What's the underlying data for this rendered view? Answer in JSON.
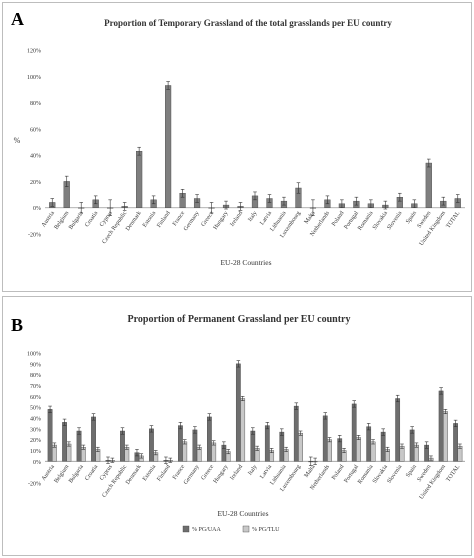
{
  "chart_data": [
    {
      "type": "bar",
      "panel_label": "A",
      "title": "Proportion of Temporary Grassland of the total grasslands per EU country",
      "xlabel": "EU-28 Countries",
      "ylabel": "%",
      "ylim": [
        -20,
        120
      ],
      "yticks": [
        "-20%",
        "0%",
        "20%",
        "40%",
        "60%",
        "80%",
        "100%",
        "120%"
      ],
      "grid": false,
      "categories": [
        "Austria",
        "Belgium",
        "Bulgaria",
        "Croatia",
        "Cyprus",
        "Czech Republic",
        "Denmark",
        "Estonia",
        "Finland",
        "France",
        "Germany",
        "Greece",
        "Hungary",
        "Ireland",
        "Italy",
        "Latvia",
        "Lithuania",
        "Luxembourg",
        "Malta",
        "Netherlands",
        "Poland",
        "Portugal",
        "Romania",
        "Slovakia",
        "Slovenia",
        "Spain",
        "Sweden",
        "United Kingdom",
        "TOTAL"
      ],
      "series": [
        {
          "values": [
            4,
            20,
            0,
            6,
            0,
            1,
            43,
            6,
            93,
            11,
            7,
            0,
            2,
            1,
            9,
            7,
            5,
            15,
            0,
            6,
            3,
            5,
            3,
            2,
            8,
            3,
            34,
            5,
            7
          ],
          "errors": [
            3,
            4,
            4,
            3,
            6,
            3,
            3,
            3,
            3,
            3,
            3,
            4,
            3,
            3,
            3,
            3,
            3,
            4,
            6,
            3,
            3,
            3,
            3,
            3,
            3,
            3,
            3,
            3,
            3
          ],
          "color": "#7f7f7f"
        }
      ]
    },
    {
      "type": "bar",
      "panel_label": "B",
      "title": "Proportion of Permanent Grassland per EU country",
      "xlabel": "EU-28 Countries",
      "ylabel": "",
      "ylim": [
        -20,
        100
      ],
      "yticks": [
        "-20%",
        "0%",
        "10%",
        "20%",
        "30%",
        "40%",
        "50%",
        "60%",
        "70%",
        "80%",
        "90%",
        "100%"
      ],
      "grid": false,
      "legend_position": "bottom",
      "categories": [
        "Austria",
        "Belgium",
        "Bulgaria",
        "Croatia",
        "Cyprus",
        "Czech Republic",
        "Denmark",
        "Estonia",
        "Finland",
        "France",
        "Germany",
        "Greece",
        "Hungary",
        "Ireland",
        "Italy",
        "Latvia",
        "Lithuania",
        "Luxembourg",
        "Malta",
        "Netherlands",
        "Poland",
        "Portugal",
        "Romania",
        "Slovakia",
        "Slovenia",
        "Spain",
        "Sweden",
        "United Kingdom",
        "TOTAL"
      ],
      "series": [
        {
          "name": "% PG/UAA",
          "values": [
            48,
            36,
            28,
            41,
            1,
            28,
            8,
            30,
            1,
            33,
            29,
            41,
            15,
            90,
            28,
            33,
            27,
            51,
            0,
            42,
            21,
            53,
            32,
            27,
            58,
            29,
            15,
            65,
            35
          ],
          "errors": [
            3,
            3,
            3,
            3,
            3,
            3,
            3,
            3,
            3,
            3,
            3,
            3,
            3,
            3,
            3,
            3,
            3,
            3,
            4,
            3,
            3,
            3,
            3,
            3,
            3,
            3,
            3,
            3,
            3
          ],
          "color": "#6e6e6e"
        },
        {
          "name": "% PG/TLU",
          "values": [
            15,
            16,
            13,
            11,
            1,
            13,
            5,
            8,
            1,
            18,
            13,
            17,
            9,
            58,
            12,
            10,
            11,
            26,
            0,
            20,
            10,
            22,
            18,
            11,
            14,
            15,
            3,
            46,
            14
          ],
          "errors": [
            2,
            2,
            2,
            2,
            2,
            2,
            2,
            2,
            2,
            2,
            2,
            2,
            2,
            2,
            2,
            2,
            2,
            2,
            3,
            2,
            2,
            2,
            2,
            2,
            2,
            2,
            2,
            2,
            2
          ],
          "color": "#c8c8c8"
        }
      ]
    }
  ]
}
